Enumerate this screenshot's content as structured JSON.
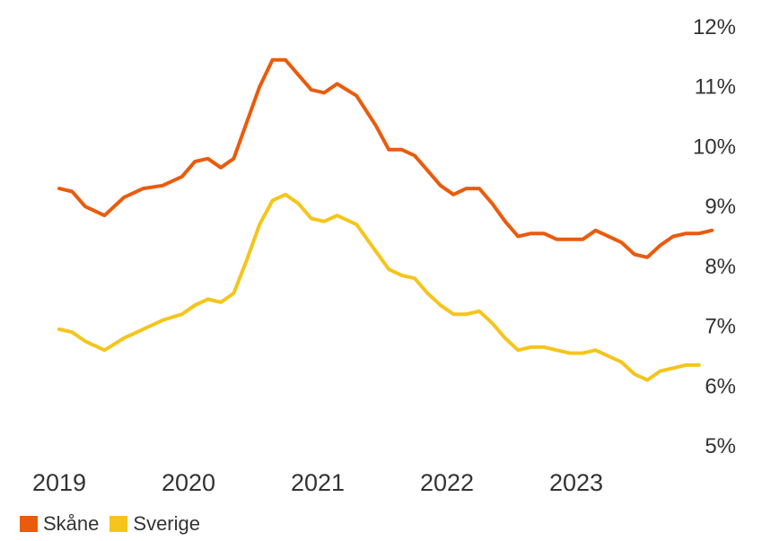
{
  "chart_data": {
    "type": "line",
    "title": "",
    "xlabel": "",
    "ylabel": "",
    "y_axis_position": "right",
    "ylim": [
      5,
      12
    ],
    "y_ticks": [
      "12%",
      "11%",
      "10%",
      "9%",
      "8%",
      "7%",
      "6%",
      "5%"
    ],
    "x_ticks": [
      "2019",
      "2020",
      "2021",
      "2022",
      "2023"
    ],
    "grid": false,
    "legend_position": "bottom-left",
    "series": [
      {
        "name": "Skåne",
        "color": "#ea5b0c",
        "points": [
          [
            2019.0,
            9.3
          ],
          [
            2019.1,
            9.25
          ],
          [
            2019.2,
            9.0
          ],
          [
            2019.35,
            8.85
          ],
          [
            2019.5,
            9.15
          ],
          [
            2019.65,
            9.3
          ],
          [
            2019.8,
            9.35
          ],
          [
            2019.95,
            9.5
          ],
          [
            2020.05,
            9.75
          ],
          [
            2020.15,
            9.8
          ],
          [
            2020.25,
            9.65
          ],
          [
            2020.35,
            9.8
          ],
          [
            2020.45,
            10.4
          ],
          [
            2020.55,
            11.0
          ],
          [
            2020.65,
            11.45
          ],
          [
            2020.75,
            11.45
          ],
          [
            2020.85,
            11.2
          ],
          [
            2020.95,
            10.95
          ],
          [
            2021.05,
            10.9
          ],
          [
            2021.15,
            11.05
          ],
          [
            2021.3,
            10.85
          ],
          [
            2021.45,
            10.35
          ],
          [
            2021.55,
            9.95
          ],
          [
            2021.65,
            9.95
          ],
          [
            2021.75,
            9.85
          ],
          [
            2021.85,
            9.6
          ],
          [
            2021.95,
            9.35
          ],
          [
            2022.05,
            9.2
          ],
          [
            2022.15,
            9.3
          ],
          [
            2022.25,
            9.3
          ],
          [
            2022.35,
            9.05
          ],
          [
            2022.45,
            8.75
          ],
          [
            2022.55,
            8.5
          ],
          [
            2022.65,
            8.55
          ],
          [
            2022.75,
            8.55
          ],
          [
            2022.85,
            8.45
          ],
          [
            2022.95,
            8.45
          ],
          [
            2023.05,
            8.45
          ],
          [
            2023.15,
            8.6
          ],
          [
            2023.25,
            8.5
          ],
          [
            2023.35,
            8.4
          ],
          [
            2023.45,
            8.2
          ],
          [
            2023.55,
            8.15
          ],
          [
            2023.65,
            8.35
          ],
          [
            2023.75,
            8.5
          ],
          [
            2023.85,
            8.55
          ],
          [
            2023.95,
            8.55
          ],
          [
            2024.05,
            8.6
          ]
        ]
      },
      {
        "name": "Sverige",
        "color": "#f5c51c",
        "points": [
          [
            2019.0,
            6.95
          ],
          [
            2019.1,
            6.9
          ],
          [
            2019.2,
            6.75
          ],
          [
            2019.35,
            6.6
          ],
          [
            2019.5,
            6.8
          ],
          [
            2019.65,
            6.95
          ],
          [
            2019.8,
            7.1
          ],
          [
            2019.95,
            7.2
          ],
          [
            2020.05,
            7.35
          ],
          [
            2020.15,
            7.45
          ],
          [
            2020.25,
            7.4
          ],
          [
            2020.35,
            7.55
          ],
          [
            2020.45,
            8.1
          ],
          [
            2020.55,
            8.7
          ],
          [
            2020.65,
            9.1
          ],
          [
            2020.75,
            9.2
          ],
          [
            2020.85,
            9.05
          ],
          [
            2020.95,
            8.8
          ],
          [
            2021.05,
            8.75
          ],
          [
            2021.15,
            8.85
          ],
          [
            2021.3,
            8.7
          ],
          [
            2021.45,
            8.25
          ],
          [
            2021.55,
            7.95
          ],
          [
            2021.65,
            7.85
          ],
          [
            2021.75,
            7.8
          ],
          [
            2021.85,
            7.55
          ],
          [
            2021.95,
            7.35
          ],
          [
            2022.05,
            7.2
          ],
          [
            2022.15,
            7.2
          ],
          [
            2022.25,
            7.25
          ],
          [
            2022.35,
            7.05
          ],
          [
            2022.45,
            6.8
          ],
          [
            2022.55,
            6.6
          ],
          [
            2022.65,
            6.65
          ],
          [
            2022.75,
            6.65
          ],
          [
            2022.85,
            6.6
          ],
          [
            2022.95,
            6.55
          ],
          [
            2023.05,
            6.55
          ],
          [
            2023.15,
            6.6
          ],
          [
            2023.25,
            6.5
          ],
          [
            2023.35,
            6.4
          ],
          [
            2023.45,
            6.2
          ],
          [
            2023.55,
            6.1
          ],
          [
            2023.65,
            6.25
          ],
          [
            2023.75,
            6.3
          ],
          [
            2023.85,
            6.35
          ],
          [
            2023.95,
            6.35
          ]
        ]
      }
    ]
  }
}
